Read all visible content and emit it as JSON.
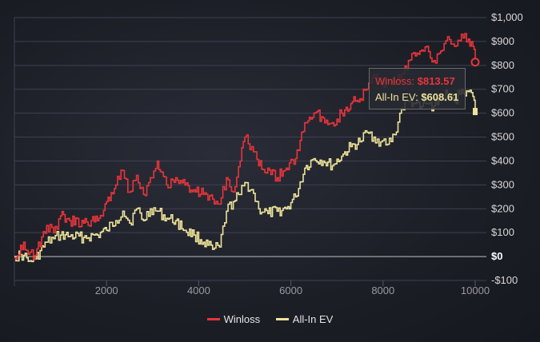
{
  "chart_data": {
    "type": "line",
    "x_ticks": [
      2000,
      4000,
      6000,
      8000,
      10000
    ],
    "x_tick_labels": [
      "2000",
      "4000",
      "6000",
      "8000",
      "10000"
    ],
    "xlim": [
      0,
      10000
    ],
    "y_ticks": [
      -100,
      0,
      100,
      200,
      300,
      400,
      500,
      600,
      700,
      800,
      900,
      1000
    ],
    "y_tick_labels": [
      "-$100",
      "$0",
      "$100",
      "$200",
      "$300",
      "$400",
      "$500",
      "$600",
      "$700",
      "$800",
      "$900",
      "$1,000"
    ],
    "ylim": [
      -100,
      1000
    ],
    "grid": true,
    "legend_placement": "bottom",
    "series": [
      {
        "name": "Winloss",
        "color": "#e8343a",
        "x": [
          0,
          200,
          300,
          450,
          700,
          850,
          1000,
          1200,
          1500,
          1800,
          2000,
          2200,
          2350,
          2500,
          2650,
          2800,
          2950,
          3100,
          3300,
          3500,
          3700,
          3900,
          4100,
          4300,
          4450,
          4600,
          4750,
          4900,
          5000,
          5150,
          5300,
          5500,
          5700,
          5900,
          6100,
          6300,
          6500,
          6700,
          6900,
          7100,
          7300,
          7500,
          7650,
          7800,
          7950,
          8100,
          8250,
          8400,
          8550,
          8700,
          8800,
          8950,
          9100,
          9250,
          9400,
          9550,
          9700,
          9850,
          9950,
          10000
        ],
        "values": [
          -5,
          60,
          10,
          5,
          130,
          100,
          170,
          150,
          140,
          150,
          230,
          300,
          360,
          270,
          340,
          260,
          330,
          400,
          300,
          330,
          300,
          280,
          260,
          240,
          220,
          330,
          270,
          400,
          500,
          460,
          380,
          370,
          330,
          370,
          410,
          560,
          600,
          580,
          560,
          600,
          640,
          660,
          700,
          760,
          720,
          740,
          720,
          760,
          820,
          840,
          860,
          880,
          820,
          860,
          920,
          880,
          930,
          910,
          880,
          813.57
        ]
      },
      {
        "name": "All-In EV",
        "color": "#ede39a",
        "x": [
          0,
          200,
          300,
          450,
          700,
          850,
          1000,
          1200,
          1500,
          1800,
          2000,
          2200,
          2350,
          2500,
          2650,
          2800,
          2950,
          3100,
          3300,
          3500,
          3700,
          3900,
          4100,
          4300,
          4450,
          4600,
          4750,
          4900,
          5000,
          5150,
          5300,
          5500,
          5700,
          5900,
          6100,
          6300,
          6500,
          6700,
          6900,
          7100,
          7300,
          7500,
          7650,
          7800,
          7950,
          8100,
          8250,
          8400,
          8550,
          8700,
          8800,
          8950,
          9100,
          9250,
          9400,
          9550,
          9700,
          9850,
          9950,
          10000
        ],
        "values": [
          0,
          5,
          -20,
          -10,
          60,
          75,
          90,
          85,
          80,
          90,
          110,
          150,
          190,
          140,
          200,
          150,
          200,
          190,
          160,
          150,
          110,
          90,
          60,
          30,
          40,
          190,
          230,
          260,
          310,
          280,
          200,
          180,
          190,
          200,
          250,
          370,
          410,
          400,
          380,
          420,
          460,
          480,
          520,
          500,
          480,
          470,
          510,
          620,
          650,
          640,
          620,
          640,
          630,
          660,
          680,
          650,
          700,
          690,
          670,
          608.61
        ]
      }
    ],
    "tooltip": {
      "winloss_label": "Winloss: ",
      "winloss_value": "$813.57",
      "ev_label": "All-In EV: ",
      "ev_value": "$608.61"
    }
  }
}
